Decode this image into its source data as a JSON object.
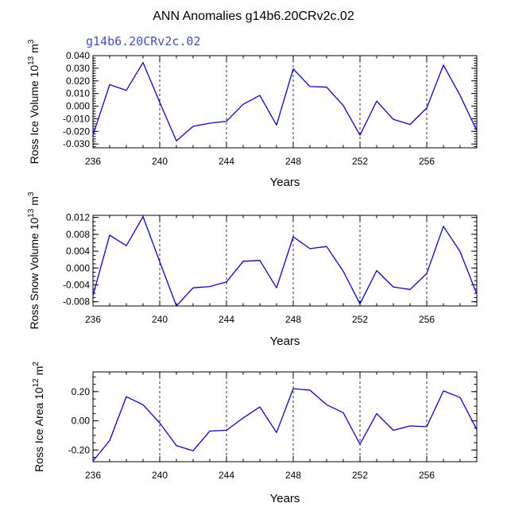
{
  "title": "ANN Anomalies g14b6.20CRv2c.02",
  "subtitle": "g14b6.20CRv2c.02",
  "series_color": "#0000ff",
  "chart_data": [
    {
      "type": "line",
      "xlabel": "Years",
      "ylabel": {
        "pre": "Ross Ice Volume 10",
        "exp": "13",
        "mid": " m",
        "exp2": "3"
      },
      "xlim": [
        236,
        259
      ],
      "ylim": [
        -0.033,
        0.04
      ],
      "xticks": [
        236,
        240,
        244,
        248,
        252,
        256
      ],
      "yticks": [
        -0.03,
        -0.02,
        -0.01,
        0.0,
        0.01,
        0.02,
        0.03,
        0.04
      ],
      "ytick_labels": [
        "-0.030",
        "-0.020",
        "-0.010",
        "0.000",
        "0.010",
        "0.020",
        "0.030",
        "0.040"
      ],
      "ytick_minor": 0.002,
      "grid_x": [
        240,
        244,
        248,
        252,
        256
      ],
      "x": [
        236,
        237,
        238,
        239,
        240,
        241,
        242,
        243,
        244,
        245,
        246,
        247,
        248,
        249,
        250,
        251,
        252,
        253,
        254,
        255,
        256,
        257,
        258,
        259
      ],
      "values": [
        -0.023,
        0.017,
        0.0125,
        0.0345,
        0.003,
        -0.0275,
        -0.016,
        -0.0135,
        -0.012,
        0.0015,
        0.0085,
        -0.015,
        0.0295,
        0.0155,
        0.015,
        0.0005,
        -0.023,
        0.004,
        -0.0105,
        -0.0145,
        -0.0015,
        0.0325,
        0.0085,
        -0.0195
      ]
    },
    {
      "type": "line",
      "xlabel": "Years",
      "ylabel": {
        "pre": "Ross Snow Volume 10",
        "exp": "13",
        "mid": " m",
        "exp2": "3"
      },
      "xlim": [
        236,
        259
      ],
      "ylim": [
        -0.009,
        0.0125
      ],
      "xticks": [
        236,
        240,
        244,
        248,
        252,
        256
      ],
      "yticks": [
        -0.008,
        -0.004,
        0.0,
        0.004,
        0.008,
        0.012
      ],
      "ytick_labels": [
        "-0.008",
        "-0.004",
        "0.000",
        "0.004",
        "0.008",
        "0.012"
      ],
      "ytick_minor": 0.001,
      "grid_x": [
        240,
        244,
        248,
        252,
        256
      ],
      "x": [
        236,
        237,
        238,
        239,
        240,
        241,
        242,
        243,
        244,
        245,
        246,
        247,
        248,
        249,
        250,
        251,
        252,
        253,
        254,
        255,
        256,
        257,
        258,
        259
      ],
      "values": [
        -0.0065,
        0.0078,
        0.0053,
        0.0122,
        0.0015,
        -0.009,
        -0.0047,
        -0.0044,
        -0.0033,
        0.0016,
        0.0018,
        -0.0047,
        0.0074,
        0.0046,
        0.0051,
        -0.0008,
        -0.0085,
        -0.0006,
        -0.0045,
        -0.0051,
        -0.0013,
        0.0099,
        0.0039,
        -0.0062
      ]
    },
    {
      "type": "line",
      "xlabel": "Years",
      "ylabel": {
        "pre": "Ross Ice Area 10",
        "exp": "12",
        "mid": " m",
        "exp2": "2"
      },
      "xlim": [
        236,
        259
      ],
      "ylim": [
        -0.28,
        0.335
      ],
      "xticks": [
        236,
        240,
        244,
        248,
        252,
        256
      ],
      "yticks": [
        -0.2,
        0.0,
        0.2
      ],
      "ytick_labels": [
        "-0.20",
        "0.00",
        "0.20"
      ],
      "ytick_minor": 0.05,
      "grid_x": [
        240,
        244,
        248,
        252,
        256
      ],
      "x": [
        236,
        237,
        238,
        239,
        240,
        241,
        242,
        243,
        244,
        245,
        246,
        247,
        248,
        249,
        250,
        251,
        252,
        253,
        254,
        255,
        256,
        257,
        258,
        259
      ],
      "values": [
        -0.275,
        -0.135,
        0.165,
        0.11,
        -0.015,
        -0.17,
        -0.205,
        -0.07,
        -0.065,
        0.02,
        0.095,
        -0.08,
        0.22,
        0.21,
        0.11,
        0.055,
        -0.16,
        0.05,
        -0.065,
        -0.035,
        -0.04,
        0.205,
        0.16,
        -0.06
      ]
    }
  ]
}
